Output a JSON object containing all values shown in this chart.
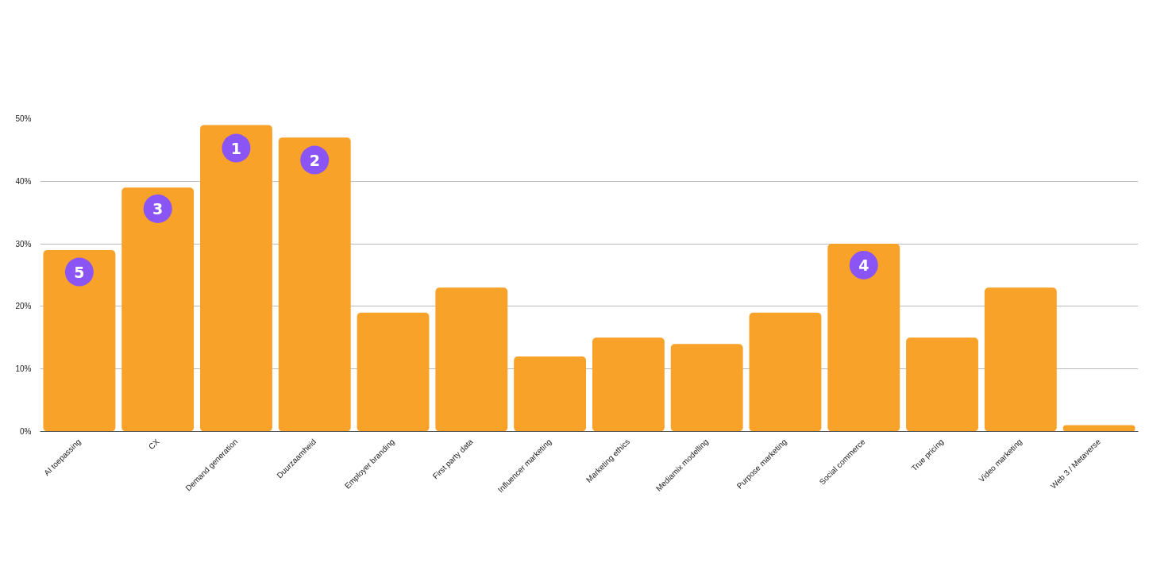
{
  "chart_data": {
    "type": "bar",
    "categories": [
      "AI toepassing",
      "CX",
      "Demand generation",
      "Duurzaamheid",
      "Employer branding",
      "First party data",
      "Influencer marketing",
      "Marketing ethics",
      "Mediamix modelling",
      "Purpose marketing",
      "Social commerce",
      "True pricing",
      "Video marketing",
      "Web 3 / Metaverse"
    ],
    "values": [
      29,
      39,
      49,
      47,
      19,
      23,
      12,
      15,
      14,
      19,
      30,
      15,
      23,
      1
    ],
    "color": "#f8a22a",
    "ylim": [
      0,
      50
    ],
    "yticks": [
      {
        "value": 0,
        "label": "0%"
      },
      {
        "value": 10,
        "label": "10%"
      },
      {
        "value": 20,
        "label": "20%"
      },
      {
        "value": 30,
        "label": "30%"
      },
      {
        "value": 40,
        "label": "40%"
      },
      {
        "value": 50,
        "label": "50%"
      }
    ],
    "grid": "y",
    "annotations": [
      {
        "text": "1",
        "x": "Demand generation",
        "y": 45.3
      },
      {
        "text": "2",
        "x": "Duurzaamheid",
        "y": 43.4
      },
      {
        "text": "3",
        "x": "CX",
        "y": 35.6
      },
      {
        "text": "4",
        "x": "Social commerce",
        "y": 26.6
      },
      {
        "text": "5",
        "x": "AI toepassing",
        "y": 25.5
      }
    ]
  }
}
